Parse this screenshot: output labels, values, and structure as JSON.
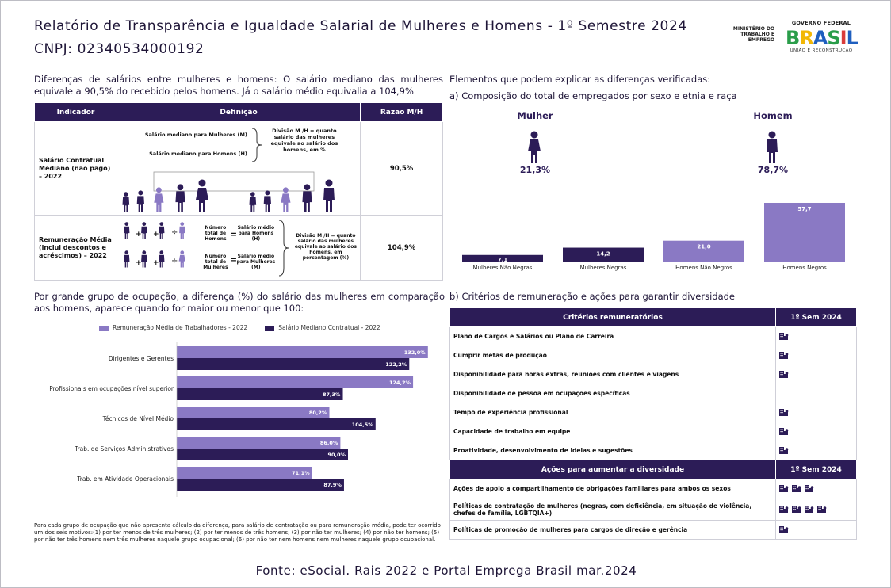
{
  "header": {
    "title": "Relatório de Transparência e Igualdade Salarial de Mulheres e Homens - 1º Semestre 2024",
    "cnpj": "CNPJ: 02340534000192",
    "ministry_logo": "MINISTÉRIO DO TRABALHO E EMPREGO",
    "gov_top": "GOVERNO FEDERAL",
    "gov_brasil": "BRASIL",
    "gov_bottom": "UNIÃO E RECONSTRUÇÃO"
  },
  "intro": "Diferenças de salários entre mulheres e homens: O salário mediano das mulheres equivale a 90,5% do recebido pelos homens. Já o salário médio equivalia a 104,9%",
  "left_table": {
    "headers": [
      "Indicador",
      "Definição",
      "Razao M/H"
    ],
    "row1": {
      "indicator": "Salário Contratual Mediano (não pago) – 2022",
      "def_women": "Salário mediano para Mulheres (M)",
      "def_men": "Salário mediano para Homens (H)",
      "def_division": "Divisão M /H = quanto salário das mulheres equivale ao salário dos homens, em %",
      "ratio": "90,5%"
    },
    "row2": {
      "indicator": "Remuneração Média (inclui descontos e acréscimos) – 2022",
      "num_men": "Número total de Homens",
      "avg_men": "Salário médio para Homens (H)",
      "num_women": "Número total de Mulheres",
      "avg_women": "Salário médio para Mulheres (M)",
      "def_division": "Divisão M /H = quanto salário das mulheres equivale ao salário dos homens, em porcentagem (%)",
      "ratio": "104,9%"
    }
  },
  "occupation_section": {
    "title": "Por grande grupo de ocupação, a diferença (%) do salário das mulheres em comparação aos homens, aparece quando for maior ou menor que 100:",
    "footnote": "Para cada grupo de ocupação que não apresenta cálculo da diferença, para salário de contratação ou para remuneração média, pode ter ocorrido um dos seis motivos:(1) por ter menos de três mulheres; (2) por ter menos de três homens; (3) por não ter mulheres; (4) por não ter homens; (5) por não ter três homens nem três mulheres naquele grupo ocupacional; (6) por não ter nem homens nem mulheres naquele grupo ocupacional."
  },
  "right_section": {
    "title": "Elementos que podem explicar as diferenças verificadas:",
    "subtitle_a": "a) Composição do total de empregados por sexo e etnia e raça",
    "woman_label": "Mulher",
    "woman_pct": "21,3%",
    "man_label": "Homem",
    "man_pct": "78,7%",
    "subtitle_b": "b) Critérios de remuneração e ações para garantir diversidade"
  },
  "chart_data": [
    {
      "type": "bar",
      "orientation": "horizontal",
      "categories": [
        "Dirigentes e Gerentes",
        "Profissionais em ocupações nível superior",
        "Técnicos de Nível Médio",
        "Trab. de Serviços Administrativos",
        "Trab. em Atividade Operacionais"
      ],
      "series": [
        {
          "name": "Remuneração Média de Trabalhadores - 2022",
          "values": [
            132.0,
            124.2,
            80.2,
            86.0,
            71.1
          ],
          "labels": [
            "132,0%",
            "124,2%",
            "80,2%",
            "86,0%",
            "71,1%"
          ],
          "color": "#8a79c4"
        },
        {
          "name": "Salário Mediano Contratual - 2022",
          "values": [
            122.2,
            87.3,
            104.5,
            90.0,
            87.9
          ],
          "labels": [
            "122,2%",
            "87,3%",
            "104,5%",
            "90,0%",
            "87,9%"
          ],
          "color": "#2c1c57"
        }
      ],
      "xlim": [
        0,
        140
      ],
      "grid": false
    },
    {
      "type": "bar",
      "orientation": "vertical",
      "categories": [
        "Mulheres Não Negras",
        "Mulheres Negras",
        "Homens Não Negros",
        "Homens Negros"
      ],
      "values": [
        7.1,
        14.2,
        21.0,
        57.7
      ],
      "labels": [
        "7,1",
        "14,2",
        "21,0",
        "57,7"
      ],
      "colors": [
        "#2c1c57",
        "#2c1c57",
        "#8a79c4",
        "#8a79c4"
      ],
      "ylim": [
        0,
        60
      ]
    }
  ],
  "criteria_table": {
    "header1": "Critérios remuneratórios",
    "col": "1º Sem 2024",
    "rows": [
      {
        "label": "Plano de Cargos e Salários ou Plano de Carreira",
        "icons": 1
      },
      {
        "label": "Cumprir metas de produção",
        "icons": 1
      },
      {
        "label": "Disponibilidade para horas extras, reuniões com clientes e viagens",
        "icons": 1
      },
      {
        "label": "Disponibilidade de pessoa em ocupações específicas",
        "icons": 0
      },
      {
        "label": "Tempo de experiência profissional",
        "icons": 1
      },
      {
        "label": "Capacidade de trabalho em equipe",
        "icons": 1
      },
      {
        "label": "Proatividade, desenvolvimento de ideias e sugestões",
        "icons": 1
      }
    ],
    "header2": "Ações para aumentar a diversidade",
    "col2": "1º Sem 2024",
    "rows2": [
      {
        "label": "Ações de apoio a compartilhamento de obrigações familiares para ambos os sexos",
        "icons": 3
      },
      {
        "label": "Políticas de contratação de mulheres (negras, com deficiência, em situação de violência, chefes de família, LGBTQIA+)",
        "icons": 4
      },
      {
        "label": "Políticas de promoção de mulheres para cargos de direção e gerência",
        "icons": 1
      }
    ],
    "icon_color": "#2c1c57"
  },
  "footer": "Fonte: eSocial. Rais 2022 e Portal Emprega Brasil mar.2024"
}
